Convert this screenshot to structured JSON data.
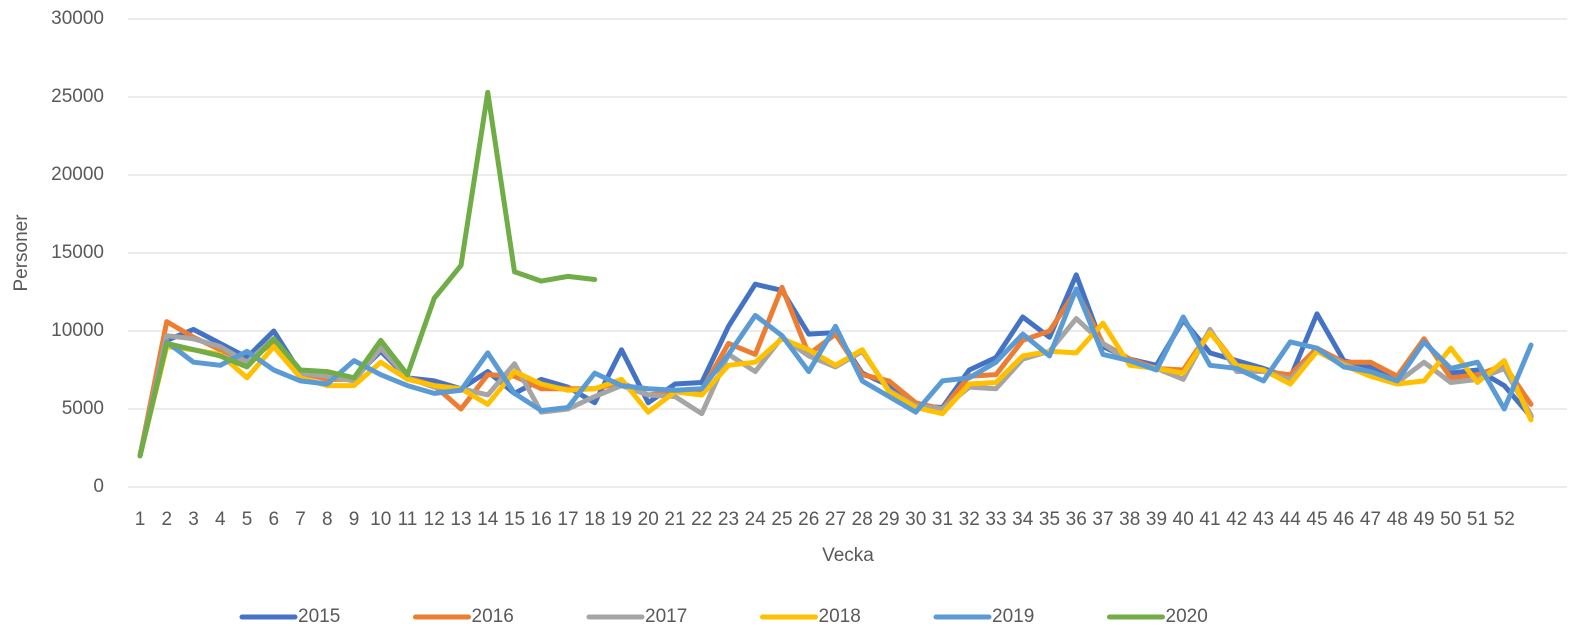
{
  "chart_data": {
    "type": "line",
    "xlabel": "Vecka",
    "ylabel": "Personer",
    "categories": [
      "1",
      "2",
      "3",
      "4",
      "5",
      "6",
      "7",
      "8",
      "9",
      "10",
      "11",
      "12",
      "13",
      "14",
      "15",
      "16",
      "17",
      "18",
      "19",
      "20",
      "21",
      "22",
      "23",
      "24",
      "25",
      "26",
      "27",
      "28",
      "29",
      "30",
      "31",
      "32",
      "33",
      "34",
      "35",
      "36",
      "37",
      "38",
      "39",
      "40",
      "41",
      "42",
      "43",
      "44",
      "45",
      "46",
      "47",
      "48",
      "49",
      "50",
      "51",
      "52",
      null
    ],
    "ylim": [
      0,
      30000
    ],
    "yticks": [
      0,
      5000,
      10000,
      15000,
      20000,
      25000,
      30000
    ],
    "grid": true,
    "legend": "bottom",
    "series": [
      {
        "name": "2015",
        "color": "#4472c4",
        "values": [
          2000,
          9400,
          10100,
          9200,
          8300,
          10000,
          7300,
          7000,
          7000,
          8700,
          7000,
          6800,
          6300,
          7400,
          6000,
          6900,
          6400,
          5400,
          8800,
          5400,
          6600,
          6700,
          10300,
          13000,
          12600,
          9800,
          9900,
          7300,
          6500,
          5200,
          5100,
          7500,
          8300,
          10900,
          9600,
          13600,
          9000,
          8200,
          7800,
          10700,
          8600,
          8100,
          7600,
          7000,
          11100,
          8100,
          7700,
          6800,
          9400,
          7300,
          7500,
          6500,
          4500
        ]
      },
      {
        "name": "2016",
        "color": "#ed7d31",
        "values": [
          2000,
          10600,
          9600,
          8800,
          8000,
          9300,
          7300,
          6900,
          6900,
          9200,
          7000,
          6500,
          5000,
          7200,
          7100,
          6300,
          6300,
          6300,
          6700,
          5900,
          6100,
          6200,
          9200,
          8500,
          12800,
          8500,
          9800,
          7200,
          6800,
          5400,
          5000,
          7100,
          7200,
          9400,
          10000,
          12600,
          9200,
          8200,
          7600,
          7500,
          10000,
          7800,
          7400,
          7200,
          8900,
          8000,
          8000,
          7100,
          9500,
          7000,
          7200,
          7800,
          5300
        ]
      },
      {
        "name": "2017",
        "color": "#a5a5a5",
        "values": [
          2000,
          9700,
          9500,
          9000,
          8000,
          9500,
          7300,
          7100,
          6800,
          8900,
          7000,
          6400,
          6300,
          5900,
          7900,
          4800,
          5000,
          5800,
          6500,
          5900,
          5800,
          4700,
          8500,
          7400,
          9600,
          8400,
          7700,
          8700,
          6200,
          5200,
          5000,
          6400,
          6300,
          8200,
          8700,
          10800,
          9200,
          8000,
          7600,
          6900,
          10100,
          7400,
          7400,
          6900,
          8700,
          7900,
          7200,
          6700,
          8000,
          6700,
          6900,
          7600,
          4600
        ]
      },
      {
        "name": "2018",
        "color": "#ffc000",
        "values": [
          2000,
          9000,
          8800,
          8500,
          7000,
          9000,
          7000,
          6500,
          6500,
          8000,
          6900,
          6500,
          6300,
          5300,
          7400,
          6600,
          6200,
          6300,
          6900,
          4800,
          6100,
          5900,
          7800,
          8000,
          9500,
          8800,
          7800,
          8800,
          6100,
          5100,
          4700,
          6600,
          6700,
          8400,
          8700,
          8600,
          10500,
          7800,
          7600,
          7300,
          9900,
          7800,
          7500,
          6600,
          8700,
          7800,
          7100,
          6600,
          6800,
          8900,
          6700,
          8100,
          4300
        ]
      },
      {
        "name": "2019",
        "color": "#5b9bd5",
        "values": [
          2000,
          9300,
          8000,
          7800,
          8700,
          7500,
          6800,
          6600,
          8100,
          7200,
          6500,
          6000,
          6200,
          8600,
          6000,
          4900,
          5100,
          7300,
          6500,
          6300,
          6200,
          6300,
          8500,
          11000,
          9700,
          7400,
          10300,
          6800,
          5800,
          4800,
          6800,
          7000,
          8000,
          9800,
          8400,
          12700,
          8500,
          8100,
          7500,
          10900,
          7800,
          7600,
          6800,
          9300,
          8900,
          7700,
          7400,
          6800,
          9300,
          7600,
          8000,
          5000,
          9100
        ]
      },
      {
        "name": "2020",
        "color": "#70ad47",
        "values": [
          2000,
          9200,
          8800,
          8400,
          7700,
          9500,
          7500,
          7400,
          7000,
          9400,
          7200,
          12100,
          14200,
          25300,
          13800,
          13200,
          13500,
          13300,
          null,
          null,
          null,
          null,
          null,
          null,
          null,
          null,
          null,
          null,
          null,
          null,
          null,
          null,
          null,
          null,
          null,
          null,
          null,
          null,
          null,
          null,
          null,
          null,
          null,
          null,
          null,
          null,
          null,
          null,
          null,
          null,
          null,
          null,
          null
        ]
      }
    ]
  }
}
